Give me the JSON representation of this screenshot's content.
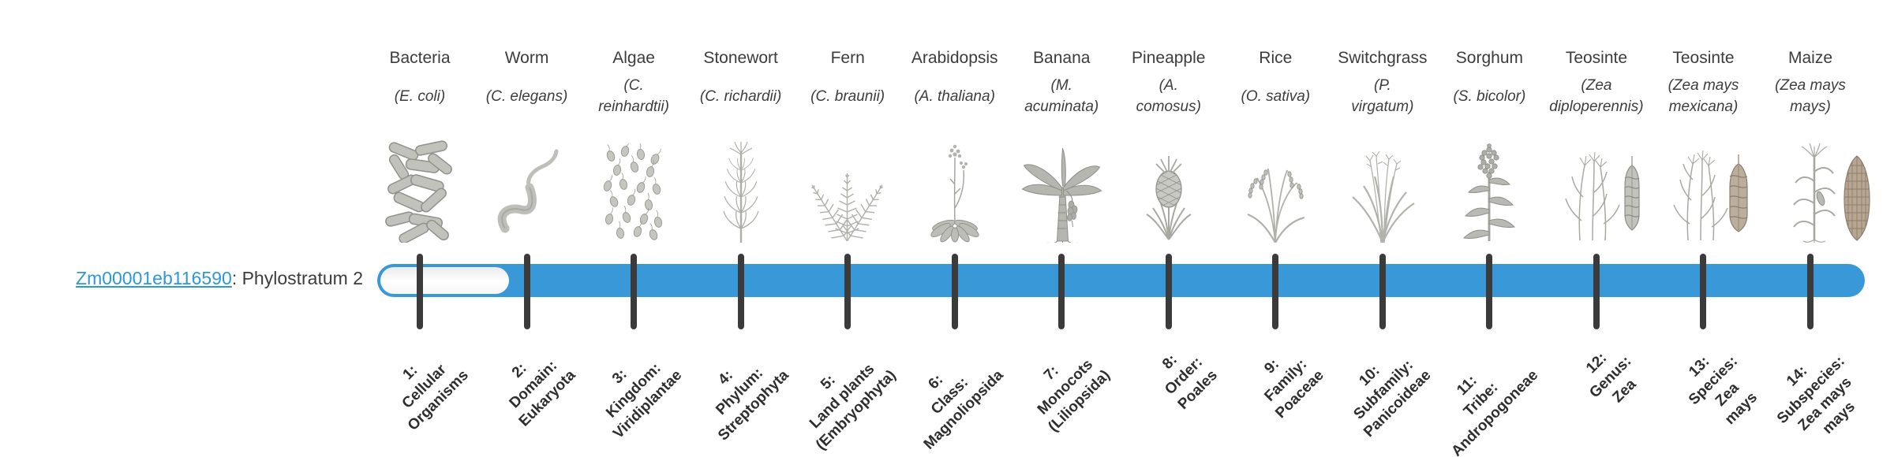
{
  "figure": {
    "gene": {
      "id": "Zm00001eb116590",
      "suffix": ": Phylostratum 2",
      "phylostratum": 2
    },
    "colors": {
      "bar_blue": "#3998d8",
      "link_blue": "#2e97d9",
      "tick": "#3b3b3b",
      "unfilled": "#ffffff"
    }
  },
  "organisms": [
    {
      "name": "Bacteria",
      "species": "(E. coli)",
      "icon": "bacteria-icon"
    },
    {
      "name": "Worm",
      "species": "(C. elegans)",
      "icon": "worm-icon"
    },
    {
      "name": "Algae",
      "species": "(C.\nreinhardtii)",
      "icon": "algae-icon"
    },
    {
      "name": "Stonewort",
      "species": "(C. richardii)",
      "icon": "stonewort-icon"
    },
    {
      "name": "Fern",
      "species": "(C. braunii)",
      "icon": "fern-icon"
    },
    {
      "name": "Arabidopsis",
      "species": "(A. thaliana)",
      "icon": "arabidopsis-icon"
    },
    {
      "name": "Banana",
      "species": "(M.\nacuminata)",
      "icon": "banana-icon"
    },
    {
      "name": "Pineapple",
      "species": "(A.\ncomosus)",
      "icon": "pineapple-icon"
    },
    {
      "name": "Rice",
      "species": "(O. sativa)",
      "icon": "rice-icon"
    },
    {
      "name": "Switchgrass",
      "species": "(P.\nvirgatum)",
      "icon": "switchgrass-icon"
    },
    {
      "name": "Sorghum",
      "species": "(S. bicolor)",
      "icon": "sorghum-icon"
    },
    {
      "name": "Teosinte",
      "species": "(Zea\ndiploperennis)",
      "icon": "teosinte-diploperennis-icon"
    },
    {
      "name": "Teosinte",
      "species": "(Zea mays\nmexicana)",
      "icon": "teosinte-mexicana-icon"
    },
    {
      "name": "Maize",
      "species": "(Zea mays\nmays)",
      "icon": "maize-icon"
    }
  ],
  "phylostrata": [
    {
      "label": "1:\nCellular\nOrganisms"
    },
    {
      "label": "2:\nDomain:\nEukaryota"
    },
    {
      "label": "3:\nKingdom:\nViridiplantae"
    },
    {
      "label": "4:\nPhylum:\nStreptophyta"
    },
    {
      "label": "5:\nLand plants\n(Embryophyta)"
    },
    {
      "label": "6:\nClass:\nMagnoliopsida"
    },
    {
      "label": "7:\nMonocots\n(Liliopsida)"
    },
    {
      "label": "8:\nOrder:\nPoales"
    },
    {
      "label": "9:\nFamily:\nPoaceae"
    },
    {
      "label": "10:\nSubfamily:\nPanicoideae"
    },
    {
      "label": "11:\nTribe:\nAndropogoneae"
    },
    {
      "label": "12:\nGenus:\nZea"
    },
    {
      "label": "13:\nSpecies:\nZea\nmays"
    },
    {
      "label": "14:\nSubspecies:\nZea mays\nmays"
    }
  ]
}
